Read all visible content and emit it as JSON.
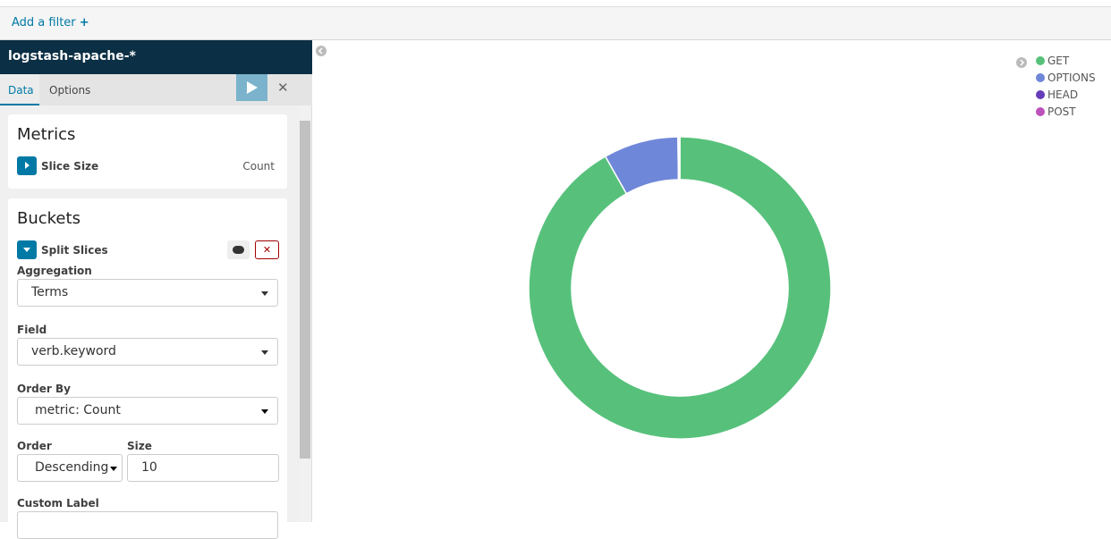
{
  "filter_bar": {
    "add_filter": "Add a filter"
  },
  "sidebar": {
    "index_pattern": "logstash-apache-*",
    "tabs": [
      "Data",
      "Options"
    ],
    "metrics": {
      "title": "Metrics",
      "agg": "Slice Size",
      "agg_value": "Count"
    },
    "buckets": {
      "title": "Buckets",
      "agg": "Split Slices",
      "aggregation": {
        "label": "Aggregation",
        "value": "Terms"
      },
      "field": {
        "label": "Field",
        "value": "verb.keyword"
      },
      "order_by": {
        "label": "Order By",
        "value": "metric: Count"
      },
      "order": {
        "label": "Order",
        "value": "Descending"
      },
      "size": {
        "label": "Size",
        "value": "10"
      },
      "custom_label": {
        "label": "Custom Label"
      }
    }
  },
  "chart_data": {
    "type": "pie",
    "donut": true,
    "legend": "top-right",
    "categories": [
      "GET",
      "OPTIONS",
      "HEAD",
      "POST"
    ],
    "values": [
      91.8,
      8,
      0.1,
      0.1
    ],
    "colors": [
      "#57c17b",
      "#6f87d8",
      "#663db8",
      "#bc52bc"
    ]
  }
}
